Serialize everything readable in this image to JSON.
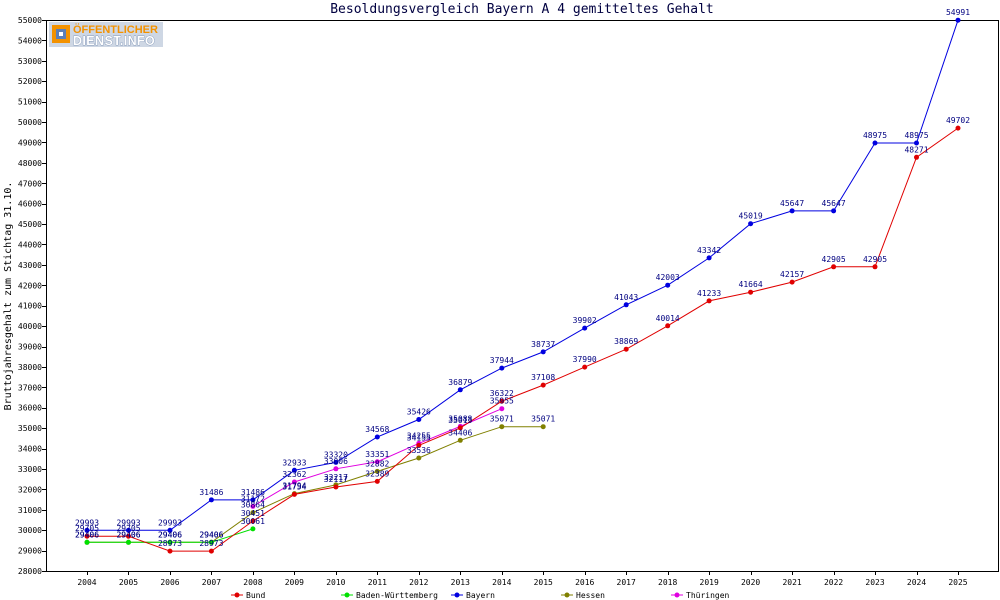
{
  "logo": {
    "line1": "ÖFFENTLICHER",
    "line2": "DIENST.INFO"
  },
  "chart_data": {
    "type": "line",
    "title": "Besoldungsvergleich Bayern A 4 gemitteltes Gehalt",
    "xlabel": "",
    "ylabel": "Bruttojahresgehalt zum Stichtag 31.10.",
    "ylim": [
      28000,
      55000
    ],
    "yticks": [
      28000,
      29000,
      30000,
      31000,
      32000,
      33000,
      34000,
      35000,
      36000,
      37000,
      38000,
      39000,
      40000,
      41000,
      42000,
      43000,
      44000,
      45000,
      46000,
      47000,
      48000,
      49000,
      50000,
      51000,
      52000,
      53000,
      54000,
      55000
    ],
    "x": [
      2004,
      2005,
      2006,
      2007,
      2008,
      2009,
      2010,
      2011,
      2012,
      2013,
      2014,
      2015,
      2016,
      2017,
      2018,
      2019,
      2020,
      2021,
      2022,
      2023,
      2024,
      2025
    ],
    "grid": false,
    "data_labels": true,
    "legend_position": "bottom",
    "series": [
      {
        "name": "Bund",
        "color": "#e00000",
        "values": [
          29705,
          29705,
          28973,
          28973,
          30451,
          31754,
          32117,
          32389,
          34155,
          35013,
          36322,
          37108,
          37990,
          38869,
          40014,
          41233,
          41664,
          42157,
          42905,
          42905,
          48271,
          49702
        ]
      },
      {
        "name": "Baden-Württemberg",
        "color": "#00e000",
        "values": [
          29406,
          29406,
          29406,
          29406,
          30061,
          null,
          null,
          null,
          null,
          null,
          null,
          null,
          null,
          null,
          null,
          null,
          null,
          null,
          null,
          null,
          null,
          null
        ]
      },
      {
        "name": "Bayern",
        "color": "#0000e0",
        "values": [
          29993,
          29993,
          29993,
          31486,
          31486,
          32933,
          33320,
          34568,
          35426,
          36879,
          37944,
          38737,
          39902,
          41043,
          42003,
          43342,
          45019,
          45647,
          45647,
          48975,
          48975,
          54991
        ]
      },
      {
        "name": "Hessen",
        "color": "#808000",
        "values": [
          29406,
          29406,
          29406,
          29406,
          30864,
          31794,
          32217,
          32882,
          33536,
          34406,
          35071,
          35071,
          null,
          null,
          null,
          null,
          null,
          null,
          null,
          null,
          null,
          null
        ]
      },
      {
        "name": "Thüringen",
        "color": "#e000e0",
        "values": [
          null,
          null,
          null,
          null,
          31172,
          32362,
          33006,
          33351,
          34255,
          35088,
          35955,
          null,
          null,
          null,
          null,
          null,
          null,
          null,
          null,
          null,
          null,
          null
        ]
      }
    ]
  }
}
